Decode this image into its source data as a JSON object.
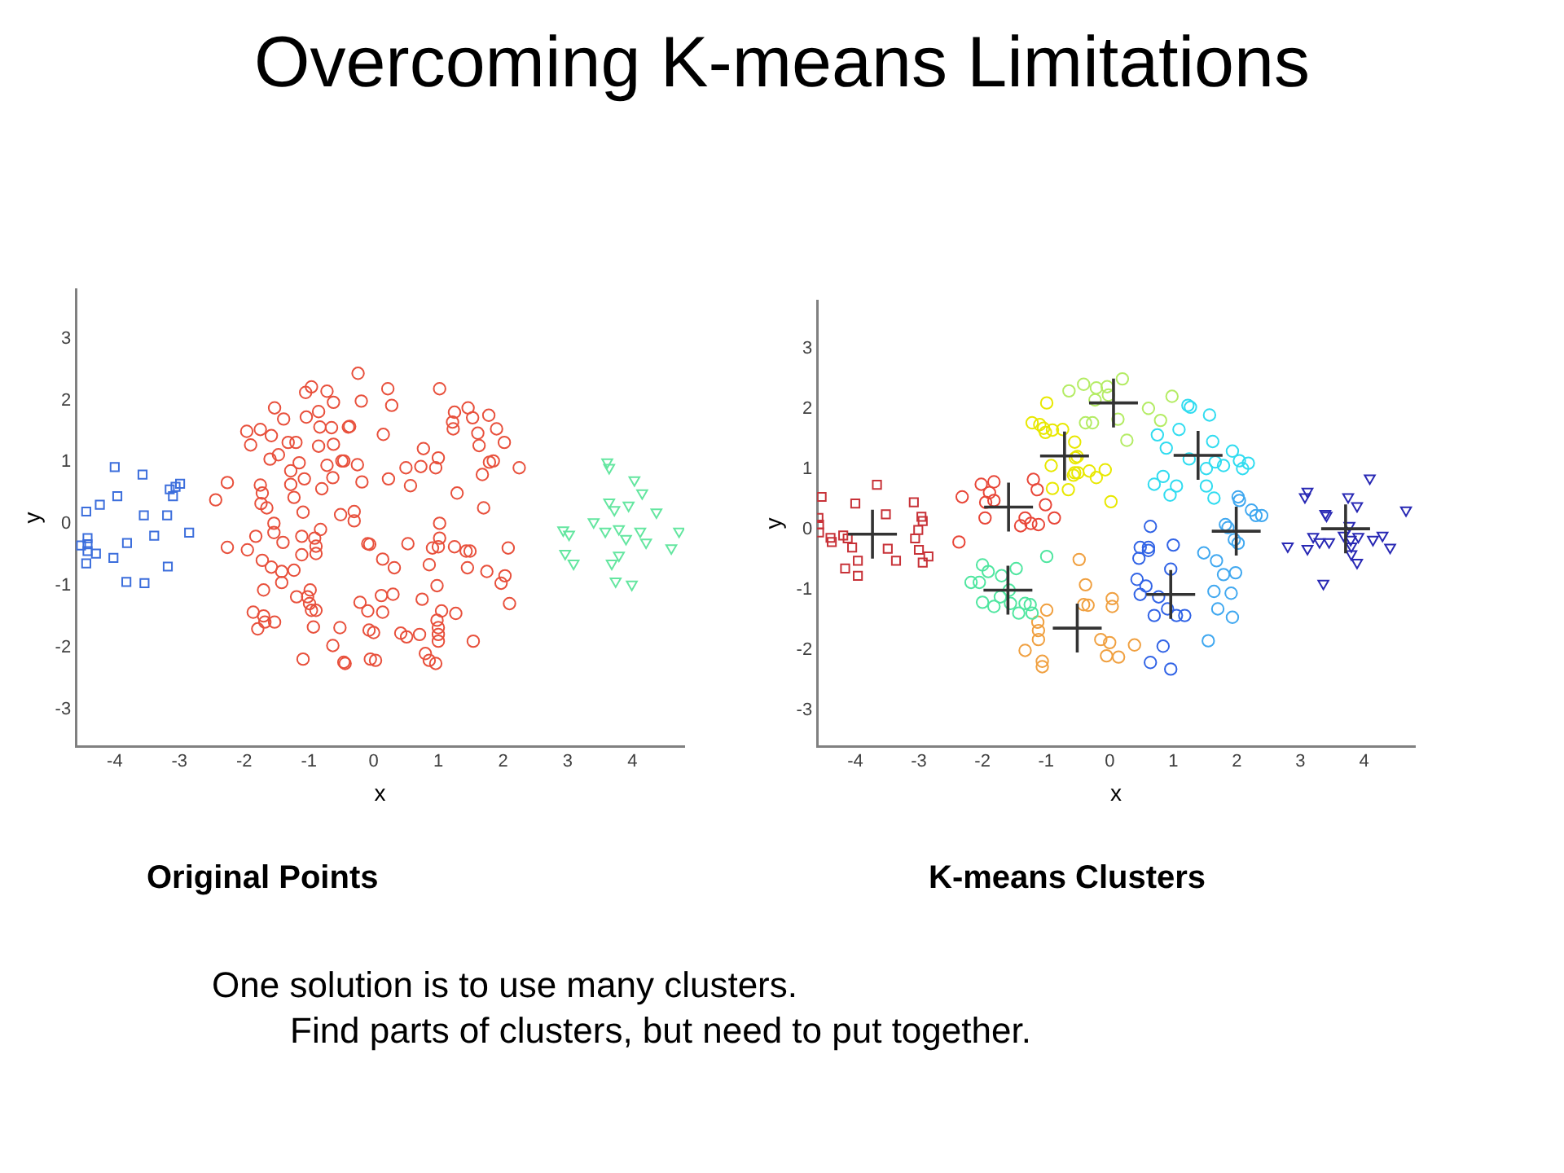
{
  "chart_data": [
    {
      "type": "scatter",
      "title": "Original Points",
      "xlabel": "x",
      "ylabel": "y",
      "xlim": [
        -4.6,
        4.8
      ],
      "ylim": [
        -3.6,
        3.8
      ],
      "xticks": [
        -4,
        -3,
        -2,
        -1,
        0,
        1,
        2,
        3,
        4
      ],
      "yticks": [
        -3,
        -2,
        -1,
        0,
        1,
        2,
        3
      ],
      "grid": false,
      "legend": false,
      "annotations": [
        "Overcoming K-means Limitations",
        "One solution is to use many clusters.",
        "Find parts of clusters, but need to put together."
      ],
      "series": [
        {
          "color": "#3c6edc",
          "marker": "square",
          "x": [
            -4.0,
            -3.57,
            -3.96,
            -4.23,
            -4.44,
            -3.55,
            -3.19,
            -3.15,
            -3.06,
            -2.99,
            -3.1,
            -3.39,
            -2.85,
            -3.81,
            -4.52,
            -4.42,
            -4.42,
            -4.42,
            -4.29,
            -4.02,
            -4.44,
            -3.18,
            -3.82,
            -3.54
          ],
          "values": [
            0.92,
            0.8,
            0.45,
            0.31,
            0.2,
            0.14,
            0.14,
            0.56,
            0.6,
            0.65,
            0.45,
            -0.19,
            -0.14,
            -0.31,
            -0.35,
            -0.23,
            -0.33,
            -0.44,
            -0.48,
            -0.55,
            -0.64,
            -0.69,
            -0.94,
            -0.96
          ]
        },
        {
          "color": "#e8503c",
          "marker": "circle",
          "x": [
            -0.24,
            -0.96,
            -1.05,
            -0.72,
            -0.62,
            -0.19,
            -1.53,
            -1.39,
            -1.04,
            -0.85,
            -0.83,
            -0.65,
            -0.39,
            -1.96,
            -1.75,
            -1.9,
            -1.58,
            -1.32,
            -1.2,
            -0.85,
            -0.62,
            -1.47,
            -1.6,
            -0.49,
            -1.15,
            -0.72,
            -0.25,
            -1.28,
            -1.07,
            -0.63,
            -0.18,
            -2.26,
            -1.28,
            -1.75,
            -0.8,
            -1.72,
            -1.23,
            -2.44,
            -1.74,
            -1.65,
            -1.09,
            -0.51,
            -0.3,
            -0.3,
            -1.54,
            -1.54,
            -0.82,
            -0.09,
            -1.82,
            -1.4,
            -1.11,
            -0.91,
            -0.89,
            -2.26,
            -1.95,
            -1.11,
            -0.89,
            -1.72,
            -1.58,
            -1.23,
            -1.42,
            -1.42,
            -1.7,
            -0.98,
            -1.19,
            -1.02,
            -0.99,
            -0.96,
            -0.89,
            -0.21,
            -0.09,
            -1.86,
            -1.7,
            -1.68,
            -1.53,
            -1.79,
            -0.93,
            -0.52,
            -0.07,
            -0.63,
            -1.09,
            -0.46,
            -0.05,
            0.22,
            1.02,
            0.28,
            1.46,
            1.25,
            1.53,
            1.78,
            1.22,
            1.23,
            1.61,
            -0.37,
            1.9,
            0.15,
            1.63,
            2.02,
            0.77,
            1.79,
            1.85,
            1.0,
            -0.46,
            0.5,
            0.73,
            0.96,
            2.25,
            1.68,
            0.23,
            0.57,
            1.29,
            1.7,
            1.02,
            1.02,
            0.53,
            -0.06,
            0.91,
            1.0,
            1.25,
            1.43,
            1.49,
            2.08,
            0.14,
            0.32,
            0.86,
            1.45,
            1.75,
            2.03,
            1.97,
            0.98,
            0.12,
            0.3,
            0.75,
            2.1,
            0.14,
            1.05,
            1.27,
            0.98,
            1.0,
            0.0,
            0.42,
            0.51,
            0.71,
            1.0,
            1.0,
            1.54,
            0.8,
            0.86,
            0.96,
            0.03,
            -0.44
          ],
          "values": [
            2.44,
            2.22,
            2.13,
            2.15,
            1.97,
            1.99,
            1.88,
            1.7,
            1.73,
            1.82,
            1.57,
            1.56,
            1.57,
            1.5,
            1.53,
            1.28,
            1.43,
            1.32,
            1.32,
            1.26,
            1.29,
            1.12,
            1.05,
            1.02,
            0.99,
            0.95,
            0.96,
            0.86,
            0.73,
            0.75,
            0.68,
            0.67,
            0.64,
            0.63,
            0.57,
            0.5,
            0.43,
            0.39,
            0.33,
            0.26,
            0.19,
            0.15,
            0.2,
            0.05,
            0.01,
            -0.14,
            -0.09,
            -0.32,
            -0.2,
            -0.3,
            -0.2,
            -0.23,
            -0.36,
            -0.38,
            -0.42,
            -0.5,
            -0.48,
            -0.59,
            -0.7,
            -0.75,
            -0.77,
            -0.95,
            -1.07,
            -1.07,
            -1.18,
            -1.18,
            -1.29,
            -1.4,
            -1.4,
            -1.27,
            -1.41,
            -1.43,
            -1.49,
            -1.59,
            -1.59,
            -1.7,
            -1.67,
            -1.68,
            -1.72,
            -1.97,
            -2.19,
            -2.24,
            -2.19,
            2.19,
            2.19,
            1.92,
            1.88,
            1.81,
            1.72,
            1.76,
            1.65,
            1.54,
            1.47,
            1.58,
            1.54,
            1.45,
            1.27,
            1.32,
            1.22,
            1.0,
            1.02,
            1.07,
            1.02,
            0.91,
            0.93,
            0.91,
            0.91,
            0.8,
            0.73,
            0.62,
            0.5,
            0.26,
            0.01,
            -0.23,
            -0.32,
            -0.33,
            -0.39,
            -0.37,
            -0.37,
            -0.44,
            -0.44,
            -0.39,
            -0.57,
            -0.71,
            -0.66,
            -0.71,
            -0.77,
            -0.84,
            -0.96,
            -1.0,
            -1.16,
            -1.14,
            -1.22,
            -1.29,
            -1.43,
            -1.41,
            -1.45,
            -1.56,
            -1.68,
            -1.76,
            -1.77,
            -1.83,
            -1.79,
            -1.79,
            -1.9,
            -1.9,
            -2.1,
            -2.21,
            -2.26,
            -2.21,
            -2.26
          ]
        },
        {
          "color": "#64e6a0",
          "marker": "triangle",
          "x": [
            3.61,
            3.64,
            4.03,
            4.15,
            3.64,
            3.72,
            3.94,
            4.37,
            3.4,
            2.93,
            3.02,
            3.58,
            3.79,
            4.12,
            4.72,
            3.9,
            4.21,
            4.6,
            2.96,
            3.09,
            3.79,
            3.68,
            3.74,
            3.99
          ],
          "values": [
            1.0,
            0.91,
            0.71,
            0.5,
            0.35,
            0.23,
            0.3,
            0.19,
            0.03,
            -0.1,
            -0.17,
            -0.12,
            -0.08,
            -0.12,
            -0.12,
            -0.24,
            -0.3,
            -0.39,
            -0.48,
            -0.64,
            -0.51,
            -0.64,
            -0.93,
            -0.98
          ]
        }
      ]
    },
    {
      "type": "scatter",
      "title": "K-means Clusters",
      "xlabel": "x",
      "ylabel": "y",
      "xlim": [
        -4.6,
        4.8
      ],
      "ylim": [
        -3.6,
        3.8
      ],
      "xticks": [
        -4,
        -3,
        -2,
        -1,
        0,
        1,
        2,
        3,
        4
      ],
      "yticks": [
        -3,
        -2,
        -1,
        0,
        1,
        2,
        3
      ],
      "grid": false,
      "legend": false,
      "series": [
        {
          "color": "#c83238",
          "marker": "square",
          "x": [
            -4.58,
            -4.53,
            -4.57,
            -4.57,
            -4.39,
            -4.37,
            -4.19,
            -4.12,
            -4.05,
            -4.0,
            -3.96,
            -4.16,
            -3.96,
            -3.66,
            -3.52,
            -3.49,
            -3.36,
            -3.08,
            -3.06,
            -3.01,
            -2.96,
            -2.94,
            -3.0,
            -2.94,
            -2.85
          ],
          "values": [
            0.19,
            0.54,
            0.08,
            -0.05,
            -0.14,
            -0.21,
            -0.1,
            -0.15,
            -0.3,
            0.43,
            -0.52,
            -0.65,
            -0.77,
            0.74,
            0.25,
            -0.32,
            -0.52,
            0.45,
            -0.15,
            -0.01,
            0.21,
            0.14,
            -0.34,
            -0.55,
            -0.45
          ]
        },
        {
          "color": "#e84638",
          "marker": "circle",
          "x": [
            -2.32,
            -2.02,
            -1.82,
            -1.89,
            -1.82,
            -1.95,
            -1.96,
            -2.37,
            -1.2,
            -1.14,
            -1.33,
            -1.4,
            -1.24,
            -1.12,
            -1.01,
            -0.87
          ],
          "values": [
            0.54,
            0.75,
            0.79,
            0.61,
            0.48,
            0.45,
            0.19,
            -0.21,
            0.83,
            0.66,
            0.19,
            0.06,
            0.1,
            0.08,
            0.41,
            0.19
          ]
        },
        {
          "color": "#50e6a0",
          "marker": "circle",
          "x": [
            -2.0,
            -2.18,
            -2.05,
            -1.91,
            -1.7,
            -1.47,
            -2.0,
            -1.82,
            -1.72,
            -1.56,
            -1.43,
            -1.33,
            -1.22,
            -1.25,
            -0.99,
            -1.58
          ],
          "values": [
            -0.59,
            -0.88,
            -0.88,
            -0.7,
            -0.77,
            -0.65,
            -1.21,
            -1.28,
            -1.12,
            -1.23,
            -1.39,
            -1.23,
            -1.39,
            -1.25,
            -0.45,
            -1.01
          ]
        },
        {
          "color": "#f0a040",
          "marker": "circle",
          "x": [
            -0.99,
            -1.13,
            -1.12,
            -1.12,
            -1.33,
            -1.06,
            -1.06,
            -0.48,
            -0.38,
            -0.41,
            -0.34,
            0.04,
            0.04,
            -0.14,
            0.0,
            0.39,
            -0.05,
            0.14
          ],
          "values": [
            -1.34,
            -1.54,
            -1.68,
            -1.83,
            -2.01,
            -2.19,
            -2.28,
            -0.5,
            -0.92,
            -1.25,
            -1.26,
            -1.15,
            -1.28,
            -1.83,
            -1.88,
            -1.92,
            -2.1,
            -2.12
          ]
        },
        {
          "color": "#e8e800",
          "marker": "circle",
          "x": [
            -0.99,
            -1.22,
            -1.1,
            -1.01,
            -1.04,
            -0.9,
            -0.74,
            -0.55,
            -0.51,
            -0.92,
            -0.9,
            -0.65,
            -0.55,
            -0.54,
            -0.5,
            -0.57,
            -0.32,
            -0.21,
            -0.07,
            0.02
          ],
          "values": [
            2.1,
            1.77,
            1.74,
            1.61,
            1.68,
            1.65,
            1.66,
            1.45,
            1.21,
            1.06,
            0.68,
            0.66,
            0.94,
            1.19,
            0.94,
            0.9,
            0.97,
            0.86,
            0.99,
            0.46
          ]
        },
        {
          "color": "#b4ec64",
          "marker": "circle",
          "x": [
            -0.64,
            -0.41,
            -0.21,
            -0.04,
            0.2,
            -0.23,
            -0.02,
            0.13,
            -0.38,
            -0.27,
            0.27,
            0.61,
            0.8,
            0.98
          ],
          "values": [
            2.3,
            2.41,
            2.35,
            2.37,
            2.5,
            2.15,
            2.23,
            1.83,
            1.77,
            1.77,
            1.48,
            2.01,
            1.81,
            2.21
          ]
        },
        {
          "color": "#30dcf0",
          "marker": "circle",
          "x": [
            1.23,
            1.27,
            1.57,
            0.75,
            0.89,
            1.09,
            1.62,
            1.25,
            1.52,
            1.66,
            1.79,
            1.93,
            2.04,
            2.18,
            2.09,
            0.84,
            0.7,
            1.05,
            0.95,
            1.52,
            1.64
          ],
          "values": [
            2.06,
            2.03,
            1.9,
            1.57,
            1.35,
            1.66,
            1.46,
            1.17,
            1.01,
            1.12,
            1.06,
            1.3,
            1.14,
            1.1,
            1.01,
            0.88,
            0.75,
            0.72,
            0.57,
            0.72,
            0.52
          ]
        },
        {
          "color": "#40a8f0",
          "marker": "circle",
          "x": [
            2.02,
            2.04,
            2.23,
            2.3,
            2.39,
            1.82,
            1.86,
            1.96,
            2.02,
            1.48,
            1.68,
            1.79,
            1.98,
            1.64,
            1.91,
            1.7,
            1.93,
            1.55
          ],
          "values": [
            0.54,
            0.48,
            0.32,
            0.23,
            0.23,
            0.08,
            0.03,
            -0.17,
            -0.23,
            -0.39,
            -0.52,
            -0.75,
            -0.72,
            -1.03,
            -1.06,
            -1.32,
            -1.46,
            -1.85
          ]
        },
        {
          "color": "#3264e6",
          "marker": "circle",
          "x": [
            0.64,
            0.48,
            0.61,
            0.61,
            1.0,
            0.46,
            0.96,
            0.43,
            0.57,
            0.48,
            0.77,
            0.91,
            0.7,
            1.05,
            1.18,
            0.84,
            0.64,
            0.96
          ],
          "values": [
            0.05,
            -0.3,
            -0.3,
            -0.35,
            -0.26,
            -0.48,
            -0.66,
            -0.83,
            -0.94,
            -1.08,
            -1.12,
            -1.32,
            -1.43,
            -1.43,
            -1.43,
            -1.94,
            -2.21,
            -2.32
          ]
        },
        {
          "color": "#2828b4",
          "marker": "triangle",
          "x": [
            3.11,
            3.07,
            3.39,
            3.41,
            4.09,
            4.66,
            3.75,
            3.89,
            2.8,
            3.11,
            3.2,
            3.3,
            3.45,
            3.68,
            3.77,
            3.79,
            3.91,
            4.14,
            4.29,
            4.41,
            3.8,
            3.8,
            3.89,
            3.36
          ],
          "values": [
            0.63,
            0.54,
            0.26,
            0.23,
            0.85,
            0.32,
            0.54,
            0.39,
            -0.28,
            -0.32,
            -0.12,
            -0.21,
            -0.21,
            -0.1,
            0.06,
            -0.17,
            -0.12,
            -0.17,
            -0.1,
            -0.3,
            -0.28,
            -0.41,
            -0.55,
            -0.9
          ]
        },
        {
          "color": "#333333",
          "marker": "cross",
          "x": [
            -3.73,
            -1.59,
            -0.71,
            -1.6,
            -0.51,
            0.06,
            1.39,
            1.99,
            0.96,
            3.71
          ],
          "values": [
            -0.08,
            0.37,
            1.22,
            -1.01,
            -1.64,
            2.1,
            1.23,
            -0.03,
            -1.08,
            0.01
          ]
        }
      ]
    }
  ]
}
